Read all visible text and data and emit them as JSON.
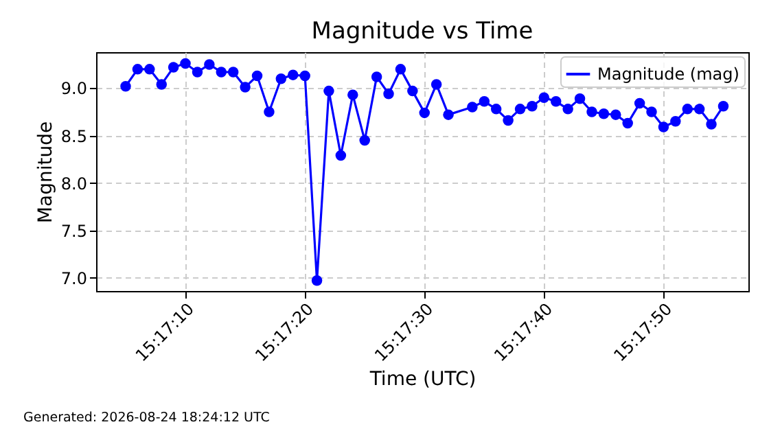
{
  "chart_data": {
    "type": "line",
    "title": "Magnitude vs Time",
    "xlabel": "Time (UTC)",
    "ylabel": "Magnitude",
    "annotations": [
      "Generated: 2026-08-24 18:24:12 UTC"
    ],
    "x": [
      15.284722,
      15.285,
      15.285278,
      15.285556,
      15.285833,
      15.286111,
      15.286389,
      15.286667,
      15.286944,
      15.287222,
      15.2875,
      15.287778,
      15.288056,
      15.288333,
      15.288611,
      15.288889,
      15.289167,
      15.289444,
      15.289722,
      15.29,
      15.290278,
      15.290556,
      15.290833,
      15.291111,
      15.291389,
      15.291667,
      15.291944,
      15.292222,
      15.292778,
      15.293056,
      15.293333,
      15.293611,
      15.293889,
      15.294167,
      15.294444,
      15.294722,
      15.295,
      15.295278,
      15.295556,
      15.295833,
      15.296111,
      15.296389,
      15.296667,
      15.296944,
      15.297222,
      15.2975,
      15.297778,
      15.298056,
      15.298333,
      15.298611
    ],
    "series": [
      {
        "name": "Magnitude (mag)",
        "color": "#0000ff",
        "values": [
          9.02,
          9.2,
          9.2,
          9.04,
          9.22,
          9.26,
          9.17,
          9.25,
          9.17,
          9.17,
          9.01,
          9.13,
          8.75,
          9.1,
          9.14,
          9.13,
          6.97,
          8.97,
          8.29,
          8.93,
          8.45,
          9.12,
          8.94,
          9.2,
          8.97,
          8.74,
          9.04,
          8.72,
          8.8,
          8.86,
          8.78,
          8.66,
          8.78,
          8.81,
          8.9,
          8.86,
          8.78,
          8.89,
          8.75,
          8.73,
          8.72,
          8.63,
          8.84,
          8.75,
          8.59,
          8.65,
          8.78,
          8.78,
          8.62,
          8.81
        ]
      }
    ],
    "xlim": [
      15.284036,
      15.299194
    ],
    "xticks": [
      {
        "value": 15.286111,
        "label": "15:17:10"
      },
      {
        "value": 15.288889,
        "label": "15:17:20"
      },
      {
        "value": 15.291667,
        "label": "15:17:30"
      },
      {
        "value": 15.294444,
        "label": "15:17:40"
      },
      {
        "value": 15.297222,
        "label": "15:17:50"
      }
    ],
    "ylim": [
      6.86,
      9.38
    ],
    "yticks": [
      {
        "value": 7.0,
        "label": "7.0"
      },
      {
        "value": 7.5,
        "label": "7.5"
      },
      {
        "value": 8.0,
        "label": "8.0"
      },
      {
        "value": 8.5,
        "label": "8.5"
      },
      {
        "value": 9.0,
        "label": "9.0"
      }
    ],
    "grid": true,
    "legend": "top right",
    "marker": "circle",
    "line_style": "solid"
  }
}
